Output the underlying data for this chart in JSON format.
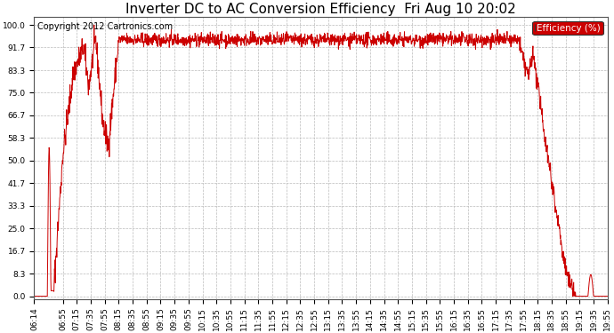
{
  "title": "Inverter DC to AC Conversion Efficiency  Fri Aug 10 20:02",
  "copyright": "Copyright 2012 Cartronics.com",
  "legend_label": "Efficiency (%)",
  "legend_bg": "#cc0000",
  "legend_fg": "#ffffff",
  "line_color": "#cc0000",
  "bg_color": "#ffffff",
  "plot_bg": "#ffffff",
  "grid_color": "#bbbbbb",
  "yticks": [
    0.0,
    8.3,
    16.7,
    25.0,
    33.3,
    41.7,
    50.0,
    58.3,
    66.7,
    75.0,
    83.3,
    91.7,
    100.0
  ],
  "ylim": [
    -1,
    103
  ],
  "xtick_labels": [
    "06:14",
    "06:55",
    "07:15",
    "07:35",
    "07:55",
    "08:15",
    "08:35",
    "08:55",
    "09:15",
    "09:35",
    "09:55",
    "10:15",
    "10:35",
    "10:55",
    "11:15",
    "11:35",
    "11:55",
    "12:15",
    "12:35",
    "12:55",
    "13:15",
    "13:35",
    "13:55",
    "14:15",
    "14:35",
    "14:55",
    "15:15",
    "15:35",
    "15:55",
    "16:15",
    "16:35",
    "16:55",
    "17:15",
    "17:35",
    "17:55",
    "18:15",
    "18:35",
    "18:55",
    "19:15",
    "19:35",
    "19:55"
  ],
  "title_fontsize": 11,
  "copyright_fontsize": 7,
  "axis_label_fontsize": 6.5,
  "legend_fontsize": 7.5
}
